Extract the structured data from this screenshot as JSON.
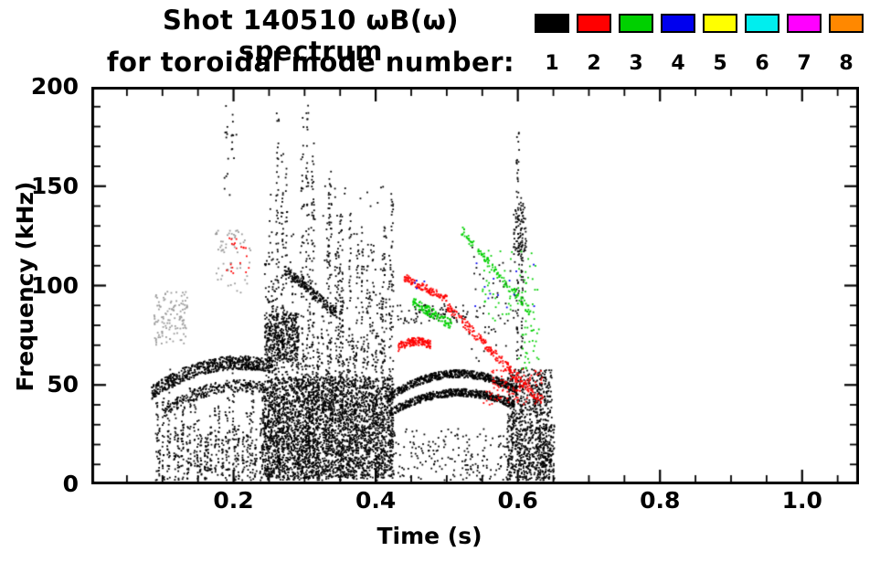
{
  "title": {
    "line1": "Shot 140510 ωB(ω) spectrum",
    "line2": "for toroidal mode number:"
  },
  "chart_data": {
    "type": "scatter",
    "title": "Shot 140510 ωB(ω) spectrum for toroidal mode number",
    "shot_number": "140510",
    "xlabel": "Time (s)",
    "ylabel": "Frequency (kHz)",
    "xlim": [
      0,
      1.08
    ],
    "ylim": [
      0,
      200
    ],
    "grid": false,
    "legend_position": "top-right",
    "xtick_values": [
      0.2,
      0.4,
      0.6,
      0.8,
      1.0
    ],
    "xtick_labels": [
      "0.2",
      "0.4",
      "0.6",
      "0.8",
      "1.0"
    ],
    "ytick_values": [
      0,
      50,
      100,
      150,
      200
    ],
    "ytick_labels": [
      "0",
      "50",
      "100",
      "150",
      "200"
    ],
    "x_major_step": 0.2,
    "x_minor_step": 0.05,
    "y_major_step": 50,
    "y_minor_step": 10,
    "grey_color": "#999999",
    "series": [
      {
        "label": "1",
        "color": "#000000"
      },
      {
        "label": "2",
        "color": "#ff0000"
      },
      {
        "label": "3",
        "color": "#00d000"
      },
      {
        "label": "4",
        "color": "#0000ee"
      },
      {
        "label": "5",
        "color": "#ffff00"
      },
      {
        "label": "6",
        "color": "#00eeee"
      },
      {
        "label": "7",
        "color": "#ff00ff"
      },
      {
        "label": "8",
        "color": "#ff8800"
      }
    ],
    "clusters": [
      {
        "mode": 1,
        "type": "arc",
        "x0": 0.085,
        "x1": 0.255,
        "y0": 46,
        "ym": 67,
        "y1": 59,
        "thick": 7,
        "n": 650
      },
      {
        "mode": 1,
        "type": "arc",
        "x0": 0.1,
        "x1": 0.245,
        "y0": 36,
        "ym": 54,
        "y1": 48,
        "thick": 6,
        "n": 280
      },
      {
        "mode": 1,
        "type": "vlines",
        "x0": 0.09,
        "x1": 0.255,
        "lines": 34,
        "ybase": 2,
        "ytop_min": 22,
        "ytop_max": 60,
        "per": 20
      },
      {
        "mode": 0,
        "type": "blob",
        "x0": 0.088,
        "x1": 0.135,
        "y0": 70,
        "y1": 97,
        "n": 120
      },
      {
        "mode": 0,
        "type": "blob",
        "x0": 0.175,
        "x1": 0.225,
        "y0": 96,
        "y1": 128,
        "n": 60
      },
      {
        "mode": 1,
        "type": "blob",
        "x0": 0.185,
        "x1": 0.205,
        "y0": 145,
        "y1": 193,
        "n": 22
      },
      {
        "mode": 2,
        "type": "blob",
        "x0": 0.19,
        "x1": 0.222,
        "y0": 106,
        "y1": 124,
        "n": 20
      },
      {
        "mode": 1,
        "type": "vlines",
        "x0": 0.244,
        "x1": 0.425,
        "lines": 46,
        "ybase": 2,
        "ytop_min": 40,
        "ytop_max": 160,
        "per": 40
      },
      {
        "mode": 1,
        "type": "spikes",
        "xs": [
          0.262,
          0.269,
          0.297,
          0.304,
          0.312,
          0.336,
          0.352
        ],
        "y0": 5,
        "ytops": [
          192,
          168,
          186,
          195,
          176,
          158,
          140
        ],
        "per": 60
      },
      {
        "mode": 1,
        "type": "blob",
        "x0": 0.24,
        "x1": 0.425,
        "y0": 3,
        "y1": 54,
        "n": 2500
      },
      {
        "mode": 1,
        "type": "blob",
        "x0": 0.244,
        "x1": 0.292,
        "y0": 62,
        "y1": 86,
        "n": 380
      },
      {
        "mode": 1,
        "type": "arc",
        "x0": 0.272,
        "x1": 0.345,
        "y0": 108,
        "ym": 97,
        "y1": 86,
        "thick": 5,
        "n": 200
      },
      {
        "mode": 1,
        "type": "blob",
        "x0": 0.25,
        "x1": 0.43,
        "y0": 58,
        "y1": 150,
        "n": 120
      },
      {
        "mode": 1,
        "type": "arc",
        "x0": 0.415,
        "x1": 0.6,
        "y0": 43,
        "ym": 66,
        "y1": 47,
        "thick": 4,
        "n": 650
      },
      {
        "mode": 1,
        "type": "arc",
        "x0": 0.42,
        "x1": 0.595,
        "y0": 36,
        "ym": 54,
        "y1": 40,
        "thick": 4,
        "n": 600
      },
      {
        "mode": 1,
        "type": "blob",
        "x0": 0.43,
        "x1": 0.53,
        "y0": 81,
        "y1": 91,
        "n": 80
      },
      {
        "mode": 1,
        "type": "blob",
        "x0": 0.53,
        "x1": 0.6,
        "y0": 60,
        "y1": 120,
        "n": 50
      },
      {
        "mode": 1,
        "type": "blob",
        "x0": 0.42,
        "x1": 0.62,
        "y0": 2,
        "y1": 28,
        "n": 220
      },
      {
        "mode": 1,
        "type": "spikes",
        "xs": [
          0.6,
          0.606
        ],
        "y0": 55,
        "ytops": [
          178,
          148
        ],
        "per": 50
      },
      {
        "mode": 1,
        "type": "blob",
        "x0": 0.594,
        "x1": 0.612,
        "y0": 114,
        "y1": 140,
        "n": 80
      },
      {
        "mode": 1,
        "type": "blob",
        "x0": 0.585,
        "x1": 0.648,
        "y0": 2,
        "y1": 58,
        "n": 850
      },
      {
        "mode": 1,
        "type": "vlines",
        "x0": 0.625,
        "x1": 0.652,
        "lines": 6,
        "ybase": 2,
        "ytop_min": 28,
        "ytop_max": 58,
        "per": 22
      },
      {
        "mode": 2,
        "type": "arc",
        "x0": 0.432,
        "x1": 0.478,
        "y0": 69,
        "ym": 74,
        "y1": 70,
        "thick": 4,
        "n": 150
      },
      {
        "mode": 2,
        "type": "arc",
        "x0": 0.44,
        "x1": 0.5,
        "y0": 104,
        "ym": 99,
        "y1": 93,
        "thick": 4,
        "n": 120
      },
      {
        "mode": 2,
        "type": "arc",
        "x0": 0.5,
        "x1": 0.632,
        "y0": 90,
        "ym": 66,
        "y1": 42,
        "thick": 5,
        "n": 220
      },
      {
        "mode": 2,
        "type": "blob",
        "x0": 0.55,
        "x1": 0.636,
        "y0": 40,
        "y1": 58,
        "n": 110
      },
      {
        "mode": 3,
        "type": "arc",
        "x0": 0.452,
        "x1": 0.508,
        "y0": 92,
        "ym": 86,
        "y1": 80,
        "thick": 5,
        "n": 120
      },
      {
        "mode": 3,
        "type": "arc",
        "x0": 0.52,
        "x1": 0.625,
        "y0": 128,
        "ym": 105,
        "y1": 84,
        "thick": 5,
        "n": 120
      },
      {
        "mode": 3,
        "type": "blob",
        "x0": 0.55,
        "x1": 0.632,
        "y0": 82,
        "y1": 118,
        "n": 60
      },
      {
        "mode": 3,
        "type": "blob",
        "x0": 0.6,
        "x1": 0.63,
        "y0": 58,
        "y1": 80,
        "n": 30
      },
      {
        "mode": 4,
        "type": "blob",
        "x0": 0.54,
        "x1": 0.625,
        "y0": 85,
        "y1": 112,
        "n": 13
      },
      {
        "mode": 4,
        "type": "blob",
        "x0": 0.455,
        "x1": 0.47,
        "y0": 98,
        "y1": 104,
        "n": 4
      }
    ]
  }
}
